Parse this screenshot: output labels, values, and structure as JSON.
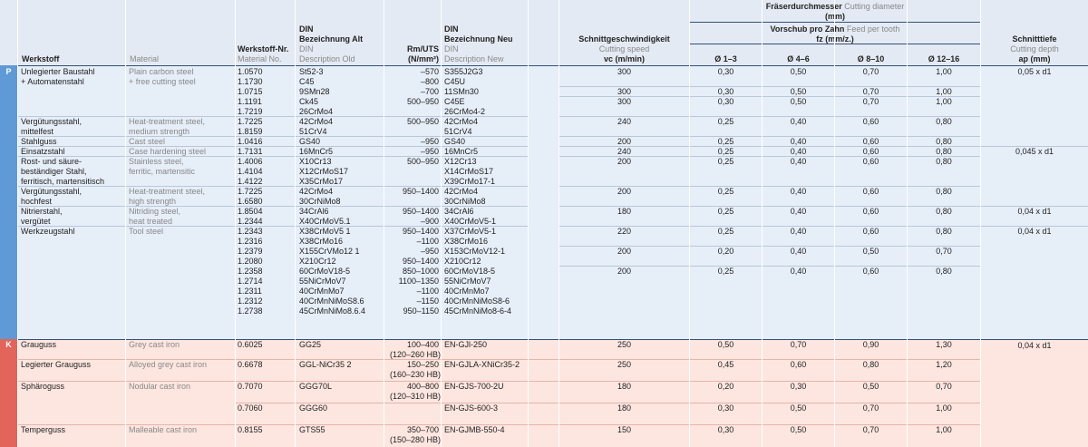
{
  "header": {
    "werkstoff": "Werkstoff",
    "material": "Material",
    "werkstoff_nr": "Werkstoff-Nr.",
    "material_no": "Material No.",
    "din_old_1": "DIN",
    "din_old_2": "Bezeichnung Alt",
    "din_old_en_1": "DIN",
    "din_old_en_2": "Description Old",
    "rm": "Rm/UTS",
    "rm_unit": "(N/mm²)",
    "din_new_1": "DIN",
    "din_new_2": "Bezeichnung Neu",
    "din_new_en_1": "DIN",
    "din_new_en_2": "Description New",
    "speed_de": "Schnittgeschwindigkeit",
    "speed_en": "Cutting speed",
    "speed_unit": "vc (m/min)",
    "diam_de": "Fräserdurchmesser",
    "diam_en": "Cutting diameter",
    "diam_unit": "(mm)",
    "feed_de": "Vorschub pro Zahn",
    "feed_en": "Feed per tooth",
    "feed_unit": "fz (mm/z.)",
    "d1": "Ø 1–3",
    "d2": "Ø 4–6",
    "d3": "Ø 8–10",
    "d4": "Ø 12–16",
    "depth_de": "Schnitttiefe",
    "depth_en": "Cutting depth",
    "depth_unit": "ap (mm)"
  },
  "groups": {
    "P": {
      "tag": "P",
      "materials": [
        {
          "de": [
            "Unlegierter Baustahl",
            "+ Automatenstahl"
          ],
          "en": [
            "Plain carbon steel",
            "+ free cutting steel"
          ]
        },
        {
          "de": [
            "Vergütungsstahl,",
            "mittelfest"
          ],
          "en": [
            "Heat-treatment steel,",
            "medium strength"
          ]
        },
        {
          "de": [
            "Stahlguss"
          ],
          "en": [
            "Cast steel"
          ]
        },
        {
          "de": [
            "Einsatzstahl"
          ],
          "en": [
            "Case hardening steel"
          ]
        },
        {
          "de": [
            "Rost- und säure-",
            "beständiger Stahl,",
            "ferritisch, martensitisch"
          ],
          "en": [
            "Stainless steel,",
            "ferritic, martensitic"
          ]
        },
        {
          "de": [
            "Vergütungsstahl,",
            "hochfest"
          ],
          "en": [
            "Heat-treatment steel,",
            "high strength"
          ]
        },
        {
          "de": [
            "Nitrierstahl,",
            "vergütet"
          ],
          "en": [
            "Nitriding steel,",
            "heat treated"
          ]
        },
        {
          "de": [
            "Werkzeugstahl"
          ],
          "en": [
            "Tool steel"
          ]
        }
      ],
      "lines": [
        [
          "1.0570",
          "St52-3",
          "–570",
          "S355J2G3"
        ],
        [
          "1.1730",
          "C45",
          "–800",
          "C45U"
        ],
        [
          "1.0715",
          "9SMn28",
          "–700",
          "11SMn30"
        ],
        [
          "1.1191",
          "Ck45",
          "500–950",
          "C45E"
        ],
        [
          "1.7219",
          "26CrMo4",
          "",
          "26CrMo4-2"
        ],
        [
          "1.7225",
          "42CrMo4",
          "500–950",
          "42CrMo4"
        ],
        [
          "1.8159",
          "51CrV4",
          "",
          "51CrV4"
        ],
        [
          "1.0416",
          "GS40",
          "–950",
          "GS40"
        ],
        [
          "1.7131",
          "16MnCr5",
          "–950",
          "16MnCr5"
        ],
        [
          "1.4006",
          "X10Cr13",
          "500–950",
          "X12Cr13"
        ],
        [
          "1.4104",
          "X12CrMoS17",
          "",
          "X14CrMoS17"
        ],
        [
          "1.4122",
          "X35CrMo17",
          "",
          "X39CrMo17-1"
        ],
        [
          "1.7225",
          "42CrMo4",
          "950–1400",
          "42CrMo4"
        ],
        [
          "1.6580",
          "30CrNiMo8",
          "",
          "30CrNiMo8"
        ],
        [
          "1.8504",
          "34CrAl6",
          "950–1400",
          "34CrAl6"
        ],
        [
          "1.2344",
          "X40CrMoV5.1",
          "–900",
          "X40CrMoV5-1"
        ],
        [
          "1.2343",
          "X38CrMoV5 1",
          "950–1400",
          "X37CrMoV5-1"
        ],
        [
          "1.2316",
          "X38CrMo16",
          "–1100",
          "X38CrMo16"
        ],
        [
          "1.2379",
          "X155CrVMo12 1",
          "–950",
          "X153CrMoV12-1"
        ],
        [
          "1.2080",
          "X210Cr12",
          "950–1400",
          "X210Cr12"
        ],
        [
          "1.2358",
          "60CrMoV18-5",
          "850–1000",
          "60CrMoV18-5"
        ],
        [
          "1.2714",
          "55NiCrMoV7",
          "1100–1350",
          "55NiCrMoV7"
        ],
        [
          "1.2311",
          "40CrMnMo7",
          "–1100",
          "40CrMnMo7"
        ],
        [
          "1.2312",
          "40CrMnNiMoS8.6",
          "–1150",
          "40CrMnNiMoS8-6"
        ],
        [
          "1.2738",
          "45CrMnNiMo8.6.4",
          "950–1150",
          "45CrMnNiMo8-6-4"
        ]
      ],
      "params": [
        [
          "300",
          "0,30",
          "0,50",
          "0,70",
          "1,00"
        ],
        [
          "300",
          "0,30",
          "0,50",
          "0,70",
          "1,00"
        ],
        [
          "300",
          "0,30",
          "0,50",
          "0,70",
          "1,00"
        ],
        [
          "240",
          "0,25",
          "0,40",
          "0,60",
          "0,80"
        ],
        [
          "200",
          "0,25",
          "0,40",
          "0,60",
          "0,80"
        ],
        [
          "240",
          "0,25",
          "0,40",
          "0,60",
          "0,80"
        ],
        [
          "200",
          "0,25",
          "0,40",
          "0,60",
          "0,80"
        ],
        [
          "200",
          "0,25",
          "0,40",
          "0,60",
          "0,80"
        ],
        [
          "180",
          "0,25",
          "0,40",
          "0,60",
          "0,80"
        ],
        [
          "220",
          "0,25",
          "0,40",
          "0,60",
          "0,80"
        ],
        [
          "200",
          "0,20",
          "0,40",
          "0,50",
          "0,70"
        ],
        [
          "200",
          "0,25",
          "0,40",
          "0,60",
          "0,80"
        ]
      ],
      "depths": [
        "0,05 x d1",
        "0,045 x d1",
        "0,04 x d1",
        "0,04 x d1"
      ]
    },
    "K": {
      "tag": "K",
      "rows": [
        {
          "de": "Grauguss",
          "en": "Grey cast iron",
          "nr": "0.6025",
          "old": "GG25",
          "rm": "100–400",
          "rm2": "(120–260 HB)",
          "new": "EN-GJl-250",
          "vc": "250",
          "f": [
            "0,50",
            "0,70",
            "0,90",
            "1,30"
          ]
        },
        {
          "de": "Legierter Grauguss",
          "en": "Alloyed grey cast iron",
          "nr": "0.6678",
          "old": "GGL-NiCr35 2",
          "rm": "150–250",
          "rm2": "(160–230 HB)",
          "new": "EN-GJLA-XNiCr35-2",
          "vc": "250",
          "f": [
            "0,45",
            "0,60",
            "0,80",
            "1,20"
          ]
        },
        {
          "de": "Sphäroguss",
          "en": "Nodular cast iron",
          "nr": "0.7070",
          "old": "GGG70L",
          "rm": "400–800",
          "rm2": "(120–310 HB)",
          "new": "EN-GJS-700-2U",
          "vc": "180",
          "f": [
            "0,20",
            "0,30",
            "0,50",
            "0,70"
          ]
        },
        {
          "de": "",
          "en": "",
          "nr": "0.7060",
          "old": "GGG60",
          "rm": "",
          "rm2": "",
          "new": "EN-GJS-600-3",
          "vc": "180",
          "f": [
            "0,30",
            "0,50",
            "0,70",
            "1,00"
          ]
        },
        {
          "de": "Temperguss",
          "en": "Malleable cast iron",
          "nr": "0.8155",
          "old": "GTS55",
          "rm": "350–700",
          "rm2": "(150–280 HB)",
          "new": "EN-GJMB-550-4",
          "vc": "150",
          "f": [
            "0,30",
            "0,50",
            "0,70",
            "1,00"
          ]
        }
      ],
      "depth": "0,04 x d1"
    }
  }
}
